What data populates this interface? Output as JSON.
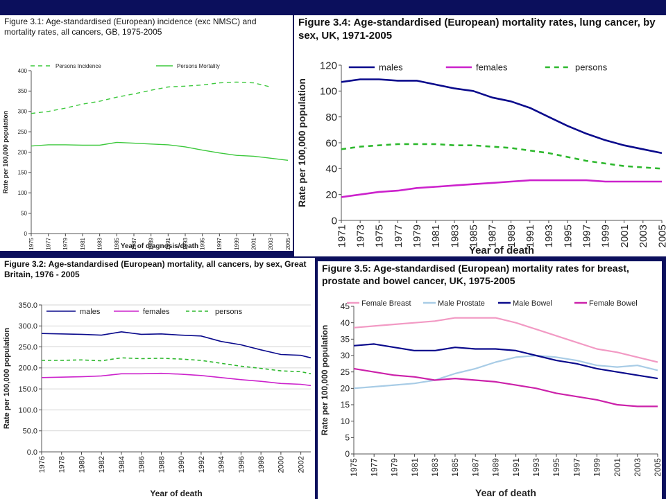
{
  "chart_data": [
    {
      "id": "fig31",
      "type": "line",
      "title": "Figure 3.1: Age-standardised (European) incidence (exc NMSC) and mortality rates, all cancers, GB, 1975-2005",
      "xlabel": "Year of diagnosis/death",
      "ylabel": "Rate per 100,000 population",
      "ylim": [
        0,
        400
      ],
      "yticks": [
        "0",
        "50",
        "100",
        "150",
        "200",
        "250",
        "300",
        "350",
        "400"
      ],
      "xlim": [
        1975,
        2005
      ],
      "xticks": [
        "1975",
        "1977",
        "1979",
        "1981",
        "1983",
        "1985",
        "1987",
        "1989",
        "1991",
        "1993",
        "1995",
        "1997",
        "1999",
        "2001",
        "2003",
        "2005"
      ],
      "grid": false,
      "legend": "top",
      "series": [
        {
          "name": "Persons Incidence",
          "color": "#3cc83c",
          "style": "dashed",
          "x": [
            1975,
            1977,
            1979,
            1981,
            1983,
            1985,
            1987,
            1989,
            1991,
            1993,
            1995,
            1997,
            1999,
            2001,
            2003
          ],
          "values": [
            295,
            300,
            308,
            318,
            325,
            335,
            343,
            352,
            360,
            362,
            365,
            370,
            372,
            370,
            360
          ]
        },
        {
          "name": "Persons Mortality",
          "color": "#3cc83c",
          "style": "solid",
          "x": [
            1975,
            1977,
            1979,
            1981,
            1983,
            1985,
            1987,
            1989,
            1991,
            1993,
            1995,
            1997,
            1999,
            2001,
            2003,
            2005
          ],
          "values": [
            215,
            218,
            218,
            217,
            217,
            224,
            222,
            220,
            218,
            213,
            205,
            198,
            192,
            190,
            185,
            180
          ]
        }
      ]
    },
    {
      "id": "fig34",
      "type": "line",
      "title": "Figure 3.4: Age-standardised (European) mortality rates, lung cancer, by sex, UK, 1971-2005",
      "xlabel": "Year of death",
      "ylabel": "Rate per 100,000 population",
      "ylim": [
        0,
        120
      ],
      "yticks": [
        "0",
        "20",
        "40",
        "60",
        "80",
        "100",
        "120"
      ],
      "xlim": [
        1971,
        2005
      ],
      "xticks": [
        "1971",
        "1973",
        "1975",
        "1977",
        "1979",
        "1981",
        "1983",
        "1985",
        "1987",
        "1989",
        "1991",
        "1993",
        "1995",
        "1997",
        "1999",
        "2001",
        "2003",
        "2005"
      ],
      "grid": false,
      "legend": "top",
      "series": [
        {
          "name": "males",
          "color": "#0a0a8c",
          "style": "solid",
          "x": [
            1971,
            1973,
            1975,
            1977,
            1979,
            1981,
            1983,
            1985,
            1987,
            1989,
            1991,
            1993,
            1995,
            1997,
            1999,
            2001,
            2003,
            2005
          ],
          "values": [
            107,
            109,
            109,
            108,
            108,
            105,
            102,
            100,
            95,
            92,
            87,
            80,
            73,
            67,
            62,
            58,
            55,
            52
          ]
        },
        {
          "name": "females",
          "color": "#cc22cc",
          "style": "solid",
          "x": [
            1971,
            1973,
            1975,
            1977,
            1979,
            1981,
            1983,
            1985,
            1987,
            1989,
            1991,
            1993,
            1995,
            1997,
            1999,
            2001,
            2003,
            2005
          ],
          "values": [
            18,
            20,
            22,
            23,
            25,
            26,
            27,
            28,
            29,
            30,
            31,
            31,
            31,
            31,
            30,
            30,
            30,
            30
          ]
        },
        {
          "name": "persons",
          "color": "#2db82d",
          "style": "dashed",
          "x": [
            1971,
            1973,
            1975,
            1977,
            1979,
            1981,
            1983,
            1985,
            1987,
            1989,
            1991,
            1993,
            1995,
            1997,
            1999,
            2001,
            2003,
            2005
          ],
          "values": [
            55,
            57,
            58,
            59,
            59,
            59,
            58,
            58,
            57,
            56,
            54,
            52,
            49,
            46,
            44,
            42,
            41,
            40
          ]
        }
      ]
    },
    {
      "id": "fig32",
      "type": "line",
      "title": "Figure 3.2: Age-standardised (European) mortality, all cancers, by sex, Great Britain, 1976 - 2005",
      "xlabel": "Year of death",
      "ylabel": "Rate per 100,000 population",
      "ylim": [
        0,
        350
      ],
      "yticks": [
        "0.0",
        "50.0",
        "100.0",
        "150.0",
        "200.0",
        "250.0",
        "300.0",
        "350.0"
      ],
      "xlim": [
        1976,
        2003
      ],
      "xticks": [
        "1976",
        "1978",
        "1980",
        "1982",
        "1984",
        "1986",
        "1988",
        "1990",
        "1992",
        "1994",
        "1996",
        "1998",
        "2000",
        "2002"
      ],
      "grid": true,
      "legend": "top",
      "series": [
        {
          "name": "males",
          "color": "#0a0a8c",
          "style": "solid",
          "x": [
            1976,
            1978,
            1980,
            1982,
            1984,
            1986,
            1988,
            1990,
            1992,
            1994,
            1996,
            1998,
            2000,
            2002,
            2003
          ],
          "values": [
            282,
            281,
            280,
            278,
            286,
            280,
            281,
            278,
            276,
            263,
            255,
            243,
            232,
            230,
            224
          ]
        },
        {
          "name": "females",
          "color": "#cc22cc",
          "style": "solid",
          "x": [
            1976,
            1978,
            1980,
            1982,
            1984,
            1986,
            1988,
            1990,
            1992,
            1994,
            1996,
            1998,
            2000,
            2002,
            2003
          ],
          "values": [
            177,
            178,
            179,
            181,
            186,
            186,
            187,
            185,
            182,
            177,
            172,
            168,
            163,
            161,
            158
          ]
        },
        {
          "name": "persons",
          "color": "#2db82d",
          "style": "dashed",
          "x": [
            1976,
            1978,
            1980,
            1982,
            1984,
            1986,
            1988,
            1990,
            1992,
            1994,
            1996,
            1998,
            2000,
            2002,
            2003
          ],
          "values": [
            218,
            218,
            219,
            217,
            224,
            222,
            223,
            221,
            218,
            211,
            204,
            199,
            193,
            191,
            186
          ]
        }
      ]
    },
    {
      "id": "fig35",
      "type": "line",
      "title": "Figure 3.5: Age-standardised (European) mortality rates for breast, prostate and bowel cancer, UK, 1975-2005",
      "xlabel": "Year of death",
      "ylabel": "Rate per 100,000 population",
      "ylim": [
        0,
        45
      ],
      "yticks": [
        "0",
        "5",
        "10",
        "15",
        "20",
        "25",
        "30",
        "35",
        "40",
        "45"
      ],
      "xlim": [
        1975,
        2005
      ],
      "xticks": [
        "1975",
        "1977",
        "1979",
        "1981",
        "1983",
        "1985",
        "1987",
        "1989",
        "1991",
        "1993",
        "1995",
        "1997",
        "1999",
        "2001",
        "2003",
        "2005"
      ],
      "grid": false,
      "legend": "top",
      "series": [
        {
          "name": "Female Breast",
          "color": "#f29ac4",
          "style": "solid",
          "x": [
            1975,
            1977,
            1979,
            1981,
            1983,
            1985,
            1987,
            1989,
            1991,
            1993,
            1995,
            1997,
            1999,
            2001,
            2003,
            2005
          ],
          "values": [
            38.5,
            39,
            39.5,
            40,
            40.5,
            41.5,
            41.5,
            41.5,
            40,
            38,
            36,
            34,
            32,
            31,
            29.5,
            28
          ]
        },
        {
          "name": "Male Prostate",
          "color": "#a8cce6",
          "style": "solid",
          "x": [
            1975,
            1977,
            1979,
            1981,
            1983,
            1985,
            1987,
            1989,
            1991,
            1993,
            1995,
            1997,
            1999,
            2001,
            2003,
            2005
          ],
          "values": [
            20,
            20.5,
            21,
            21.5,
            22.5,
            24.5,
            26,
            28,
            29.5,
            30,
            29.5,
            28.5,
            27,
            26.5,
            27,
            25.5
          ]
        },
        {
          "name": "Male Bowel",
          "color": "#0a0a8c",
          "style": "solid",
          "x": [
            1975,
            1977,
            1979,
            1981,
            1983,
            1985,
            1987,
            1989,
            1991,
            1993,
            1995,
            1997,
            1999,
            2001,
            2003,
            2005
          ],
          "values": [
            33,
            33.5,
            32.5,
            31.5,
            31.5,
            32.5,
            32,
            32,
            31.5,
            30,
            28.5,
            27.5,
            26,
            25,
            24,
            23
          ]
        },
        {
          "name": "Female Bowel",
          "color": "#cc22aa",
          "style": "solid",
          "x": [
            1975,
            1977,
            1979,
            1981,
            1983,
            1985,
            1987,
            1989,
            1991,
            1993,
            1995,
            1997,
            1999,
            2001,
            2003,
            2005
          ],
          "values": [
            26,
            25,
            24,
            23.5,
            22.5,
            23,
            22.5,
            22,
            21,
            20,
            18.5,
            17.5,
            16.5,
            15,
            14.5,
            14.5
          ]
        }
      ]
    }
  ]
}
